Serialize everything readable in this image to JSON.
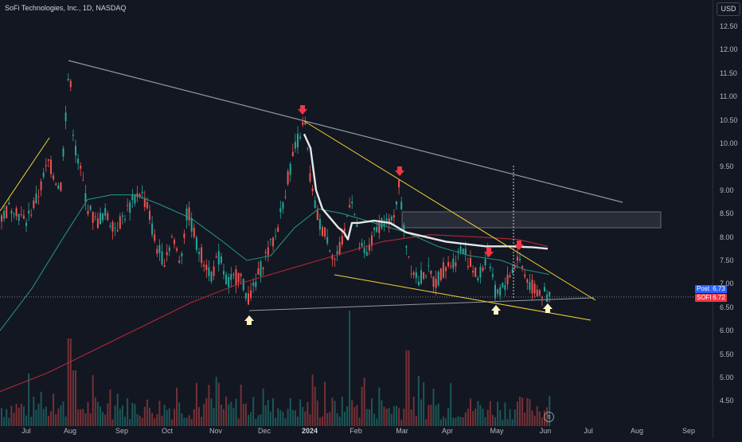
{
  "header": {
    "symbol_title": "SoFi Technologies, Inc., 1D, NASDAQ",
    "currency_button": "USD"
  },
  "price_axis": [
    "12.50",
    "12.00",
    "11.50",
    "11.00",
    "10.50",
    "10.00",
    "9.50",
    "9.00",
    "8.50",
    "8.00",
    "7.50",
    "7.00",
    "6.50",
    "6.00",
    "5.50",
    "5.00",
    "4.50"
  ],
  "time_axis": [
    {
      "label": "Jul",
      "bold": false
    },
    {
      "label": "Aug",
      "bold": false
    },
    {
      "label": "Sep",
      "bold": false
    },
    {
      "label": "Oct",
      "bold": false
    },
    {
      "label": "Nov",
      "bold": false
    },
    {
      "label": "Dec",
      "bold": false
    },
    {
      "label": "2024",
      "bold": true
    },
    {
      "label": "Feb",
      "bold": false
    },
    {
      "label": "Mar",
      "bold": false
    },
    {
      "label": "Apr",
      "bold": false
    },
    {
      "label": "May",
      "bold": false
    },
    {
      "label": "Jun",
      "bold": false
    },
    {
      "label": "Jul",
      "bold": false
    },
    {
      "label": "Aug",
      "bold": false
    },
    {
      "label": "Sep",
      "bold": false
    }
  ],
  "price_badges": {
    "post": {
      "label": "Post",
      "value": "6.73"
    },
    "last": {
      "label": "SOFI",
      "value": "6.72"
    }
  },
  "colors": {
    "background": "#131722",
    "up": "#26a69a",
    "down": "#ef5350",
    "ma_red": "#b22833",
    "ma_teal": "#1f8f7f",
    "ma_white": "#e8e8e8",
    "trend_gray": "#9598a1",
    "trend_yellow": "#f5d336",
    "arrow_red": "#f23645",
    "arrow_white": "#fff5c4"
  },
  "chart_data": {
    "type": "candlestick",
    "symbol": "SOFI",
    "exchange": "NASDAQ",
    "interval": "1D",
    "ylim": [
      4.2,
      12.9
    ],
    "y_ticks": [
      12.5,
      12,
      11.5,
      11,
      10.5,
      10,
      9.5,
      9,
      8.5,
      8,
      7.5,
      7,
      6.5,
      6,
      5.5,
      5,
      4.5
    ],
    "last_price": 6.72,
    "post_market_price": 6.73,
    "key_points": [
      {
        "date": "2023-07-27",
        "price": 11.7
      },
      {
        "date": "2023-11-21",
        "price": 6.5
      },
      {
        "date": "2023-12-27",
        "price": 10.45
      },
      {
        "date": "2024-02-26",
        "price": 9.2
      },
      {
        "date": "2024-04-30",
        "price": 6.6
      },
      {
        "date": "2024-06-03",
        "price": 6.72
      }
    ],
    "volume_spikes": [
      "2023-07-27",
      "2024-01-30",
      "2024-03-01"
    ]
  },
  "icons": {
    "up_arrow": "arrow-up-icon",
    "down_arrow": "arrow-down-icon",
    "earnings": "lightning-icon"
  }
}
